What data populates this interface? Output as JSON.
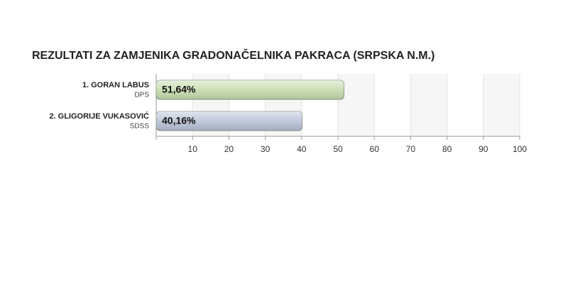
{
  "chart_data": {
    "type": "bar",
    "title": "REZULTATI ZA ZAMJENIKA GRADONAČELNIKA PAKRACA (SRPSKA N.M.)",
    "categories": [
      "1. GORAN LABUS",
      "2. GLIGORIJE VUKASOVIĆ"
    ],
    "parties": [
      "DPS",
      "SDSS"
    ],
    "values": [
      51.64,
      40.16
    ],
    "value_labels": [
      "51,64%",
      "40,16%"
    ],
    "colors": [
      "#c6dcae",
      "#b9c3d7"
    ],
    "xlim": [
      0,
      100
    ],
    "xticks": [
      10,
      20,
      30,
      40,
      50,
      60,
      70,
      80,
      90,
      100
    ],
    "grid": true
  }
}
